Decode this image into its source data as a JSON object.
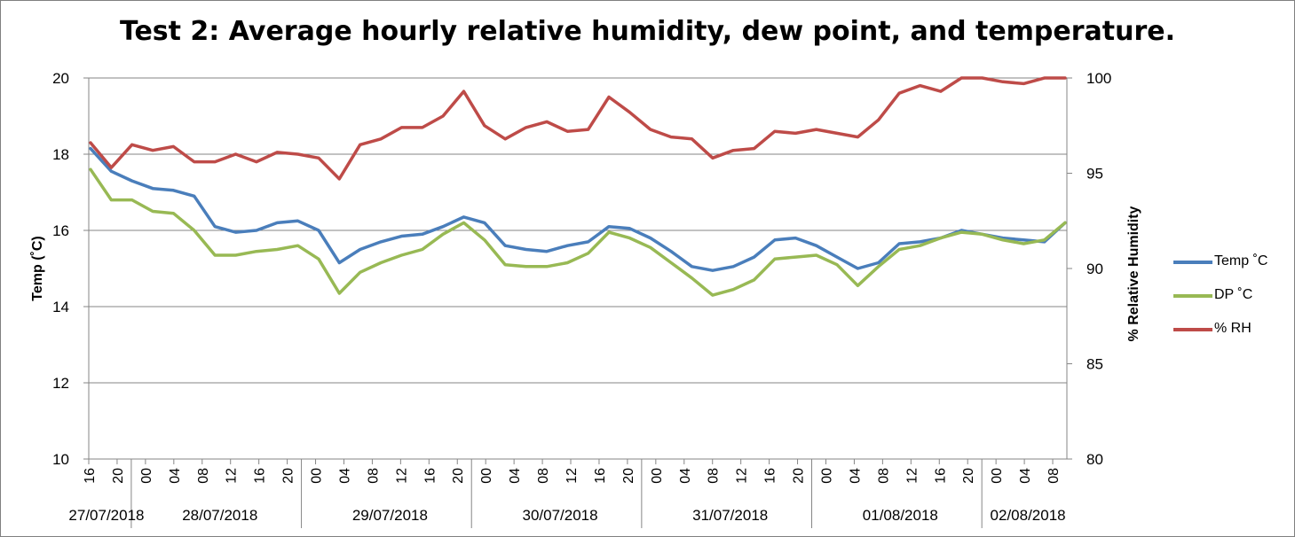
{
  "chart_data": {
    "type": "line",
    "title": "Test 2: Average hourly relative humidity, dew point, and temperature.",
    "ylabel": "Temp (˚C)",
    "y2label": "% Relative Humidity",
    "ylim": [
      10,
      20
    ],
    "y2lim": [
      80,
      100
    ],
    "yticks": [
      "10",
      "12",
      "14",
      "16",
      "18",
      "20"
    ],
    "y2ticks": [
      "80",
      "85",
      "90",
      "95",
      "100"
    ],
    "grid": true,
    "legend_position": "right",
    "hour_labels": [
      "16",
      "20",
      "00",
      "04",
      "08",
      "12",
      "16",
      "20",
      "00",
      "04",
      "08",
      "12",
      "16",
      "20",
      "00",
      "04",
      "08",
      "12",
      "16",
      "20",
      "00",
      "04",
      "08",
      "12",
      "16",
      "20",
      "00",
      "04",
      "08",
      "12",
      "16",
      "20",
      "00",
      "04",
      "08"
    ],
    "date_labels": [
      "27/07/2018",
      "28/07/2018",
      "29/07/2018",
      "30/07/2018",
      "31/07/2018",
      "01/08/2018",
      "02/08/2018"
    ],
    "x_start": "27/07/2018 16:00",
    "x_step_hours": 4,
    "series": [
      {
        "name": "Temp ˚C",
        "color": "#4a7ebb",
        "axis": "left",
        "values": [
          18.15,
          17.55,
          17.3,
          17.1,
          17.05,
          16.9,
          16.1,
          15.95,
          16.0,
          16.2,
          16.25,
          16.0,
          15.15,
          15.5,
          15.7,
          15.85,
          15.9,
          16.1,
          16.35,
          16.2,
          15.6,
          15.5,
          15.45,
          15.6,
          15.7,
          16.1,
          16.05,
          15.8,
          15.45,
          15.05,
          14.95,
          15.05,
          15.3,
          15.75,
          15.8,
          15.6,
          15.3,
          15.0,
          15.15,
          15.65,
          15.7,
          15.8,
          16.0,
          15.9,
          15.8,
          15.75,
          15.7,
          16.2
        ]
      },
      {
        "name": "DP ˚C",
        "color": "#98b954",
        "axis": "left",
        "values": [
          17.6,
          16.8,
          16.8,
          16.5,
          16.45,
          16.0,
          15.35,
          15.35,
          15.45,
          15.5,
          15.6,
          15.25,
          14.35,
          14.9,
          15.15,
          15.35,
          15.5,
          15.9,
          16.2,
          15.75,
          15.1,
          15.05,
          15.05,
          15.15,
          15.4,
          15.95,
          15.8,
          15.55,
          15.15,
          14.75,
          14.3,
          14.45,
          14.7,
          15.25,
          15.3,
          15.35,
          15.1,
          14.55,
          15.05,
          15.5,
          15.6,
          15.8,
          15.95,
          15.9,
          15.75,
          15.65,
          15.75,
          16.2
        ]
      },
      {
        "name": "% RH",
        "color": "#be4b48",
        "axis": "right",
        "values": [
          96.6,
          95.3,
          96.5,
          96.2,
          96.4,
          95.6,
          95.6,
          96.0,
          95.6,
          96.1,
          96.0,
          95.8,
          94.7,
          96.5,
          96.8,
          97.4,
          97.4,
          98.0,
          99.3,
          97.5,
          96.8,
          97.4,
          97.7,
          97.2,
          97.3,
          99.0,
          98.2,
          97.3,
          96.9,
          96.8,
          95.8,
          96.2,
          96.3,
          97.2,
          97.1,
          97.3,
          97.1,
          96.9,
          97.8,
          99.2,
          99.6,
          99.3,
          100.0,
          100.0,
          99.8,
          99.7,
          100.0,
          100.0
        ]
      }
    ]
  }
}
